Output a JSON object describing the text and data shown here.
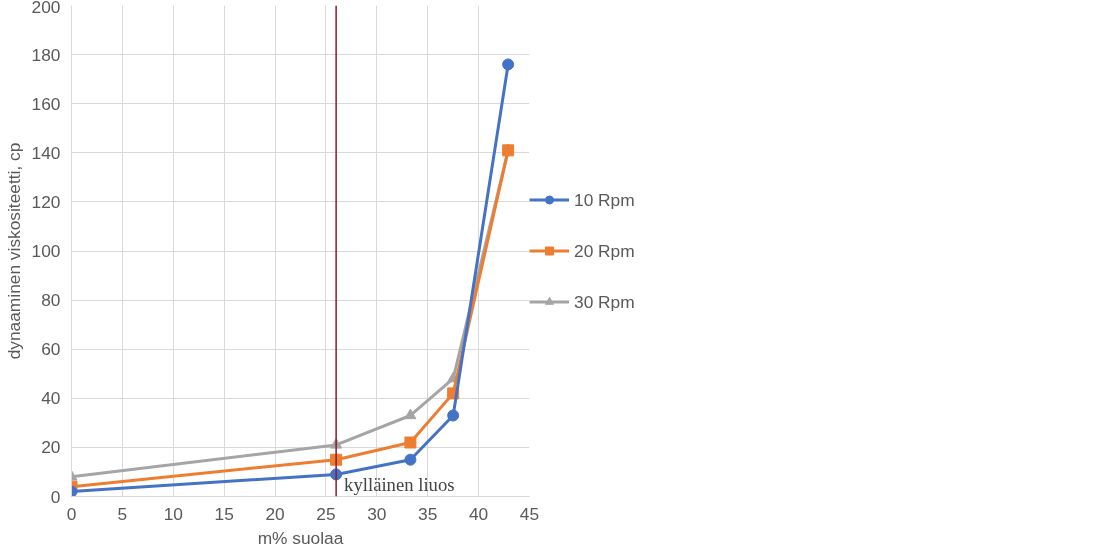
{
  "chart_data": {
    "type": "line",
    "xlabel": "m% suolaa",
    "ylabel": "dynaaminen viskositeetti, cp",
    "x": [
      0,
      26,
      33.3,
      37.5,
      42.9
    ],
    "series": [
      {
        "name": "10 Rpm",
        "color": "#4472c4",
        "marker": "circle",
        "values": [
          2,
          9,
          15,
          33,
          176
        ]
      },
      {
        "name": "20 Rpm",
        "color": "#ed7d31",
        "marker": "square",
        "values": [
          4,
          15,
          22,
          42,
          141
        ]
      },
      {
        "name": "30 Rpm",
        "color": "#a5a5a5",
        "marker": "triangle",
        "values": [
          8,
          21,
          33,
          48,
          141
        ]
      }
    ],
    "xlim": [
      0,
      45
    ],
    "xticks": [
      0,
      5,
      10,
      15,
      20,
      25,
      30,
      35,
      40,
      45
    ],
    "ylim": [
      0,
      200
    ],
    "yticks": [
      0,
      20,
      40,
      60,
      80,
      100,
      120,
      140,
      160,
      180,
      200
    ],
    "ref_lines": [
      {
        "axis": "x",
        "value": 26,
        "label": "kylläinen liuos",
        "color": "#8b1a2b"
      }
    ],
    "grid": true,
    "legend": "right",
    "line_style": "solid"
  }
}
